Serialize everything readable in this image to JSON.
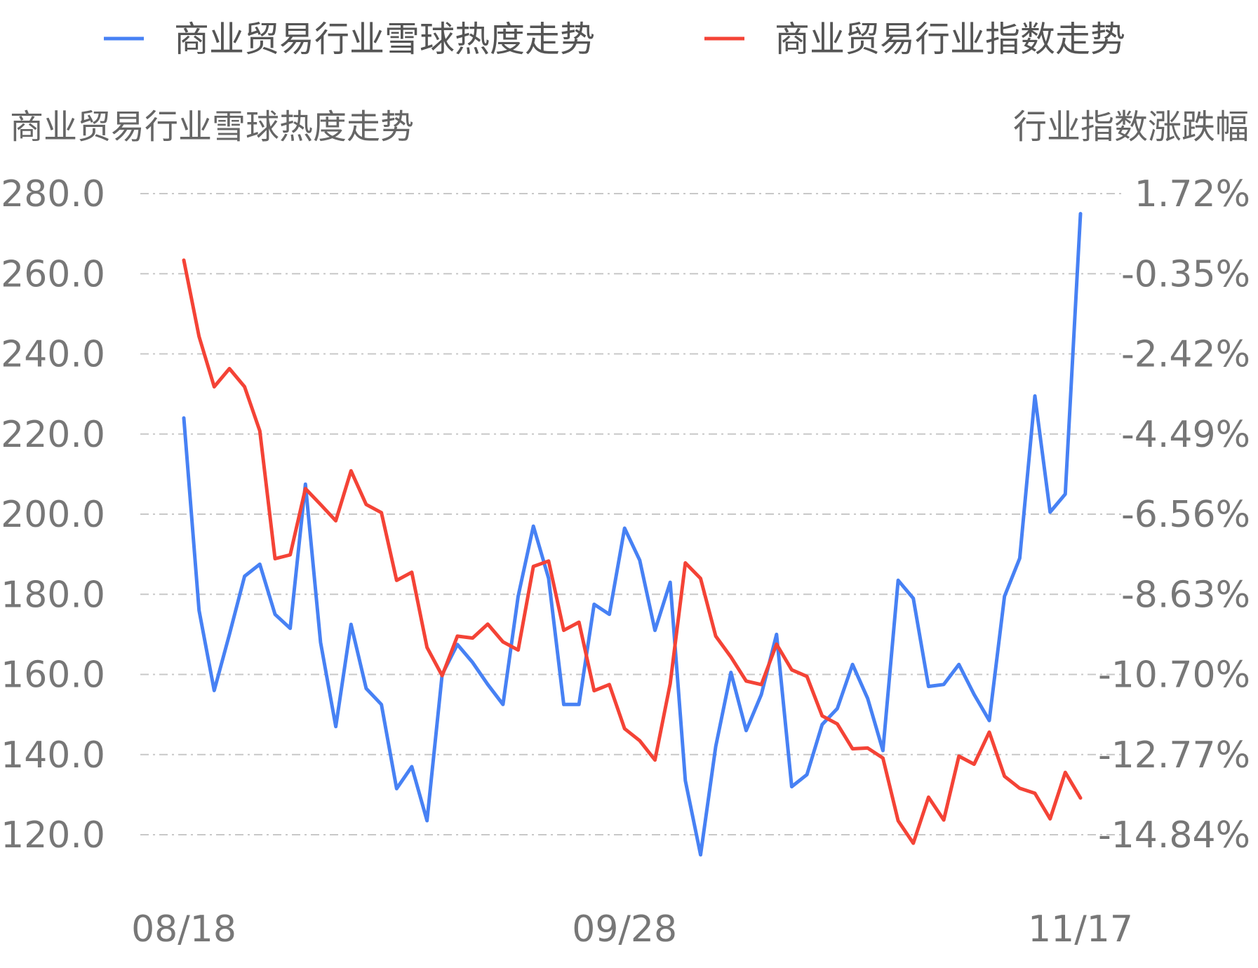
{
  "chart_data": {
    "type": "line",
    "legend": {
      "position": "top"
    },
    "left_axis": {
      "title": "商业贸易行业雪球热度走势",
      "ticks": [
        "280.0",
        "260.0",
        "240.0",
        "220.0",
        "200.0",
        "180.0",
        "160.0",
        "140.0",
        "120.0"
      ],
      "ylim": [
        120,
        280
      ]
    },
    "right_axis": {
      "title": "行业指数涨跌幅",
      "ticks": [
        "1.72%",
        "-0.35%",
        "-2.42%",
        "-4.49%",
        "-6.56%",
        "-8.63%",
        "-10.70%",
        "-12.77%",
        "-14.84%"
      ],
      "ylim": [
        -14.84,
        1.72
      ]
    },
    "x_ticks": [
      {
        "label": "08/18",
        "index": 0
      },
      {
        "label": "09/28",
        "index": 29
      },
      {
        "label": "11/17",
        "index": 59
      }
    ],
    "grid": true,
    "series": [
      {
        "name": "商业贸易行业雪球热度走势",
        "axis": "left",
        "color": "#4781f4",
        "values": [
          224,
          176,
          156,
          170,
          184.5,
          187.5,
          175,
          171.5,
          207.5,
          168,
          147,
          172.5,
          156.5,
          152.5,
          131.5,
          137,
          123.5,
          160,
          167.5,
          163,
          157.5,
          152.5,
          179.5,
          197,
          184,
          152.5,
          152.5,
          177.5,
          175,
          196.5,
          188.5,
          171,
          183,
          133.5,
          115,
          142,
          160.5,
          146,
          155,
          170,
          132,
          135,
          147.5,
          151.5,
          162.5,
          154,
          141,
          183.5,
          179,
          157,
          157.5,
          162.5,
          155,
          148.5,
          179.5,
          189,
          229.5,
          200.5,
          205,
          275
        ]
      },
      {
        "name": "商业贸易行业指数走势",
        "axis": "right",
        "color": "#f44336",
        "values": [
          0.0,
          -1.97,
          -3.27,
          -2.8,
          -3.27,
          -4.41,
          -7.71,
          -7.61,
          -5.9,
          -6.31,
          -6.73,
          -5.44,
          -6.31,
          -6.52,
          -8.27,
          -8.06,
          -10.0,
          -10.73,
          -9.71,
          -9.76,
          -9.4,
          -9.86,
          -10.07,
          -7.91,
          -7.77,
          -9.56,
          -9.35,
          -11.12,
          -10.96,
          -12.1,
          -12.41,
          -12.91,
          -10.94,
          -7.82,
          -8.22,
          -9.71,
          -10.25,
          -10.87,
          -10.96,
          -9.92,
          -10.58,
          -10.75,
          -11.77,
          -11.98,
          -12.62,
          -12.6,
          -12.86,
          -14.48,
          -15.06,
          -13.87,
          -14.46,
          -12.81,
          -13.02,
          -12.19,
          -13.33,
          -13.64,
          -13.77,
          -14.43,
          -13.23,
          -13.89
        ]
      }
    ]
  }
}
